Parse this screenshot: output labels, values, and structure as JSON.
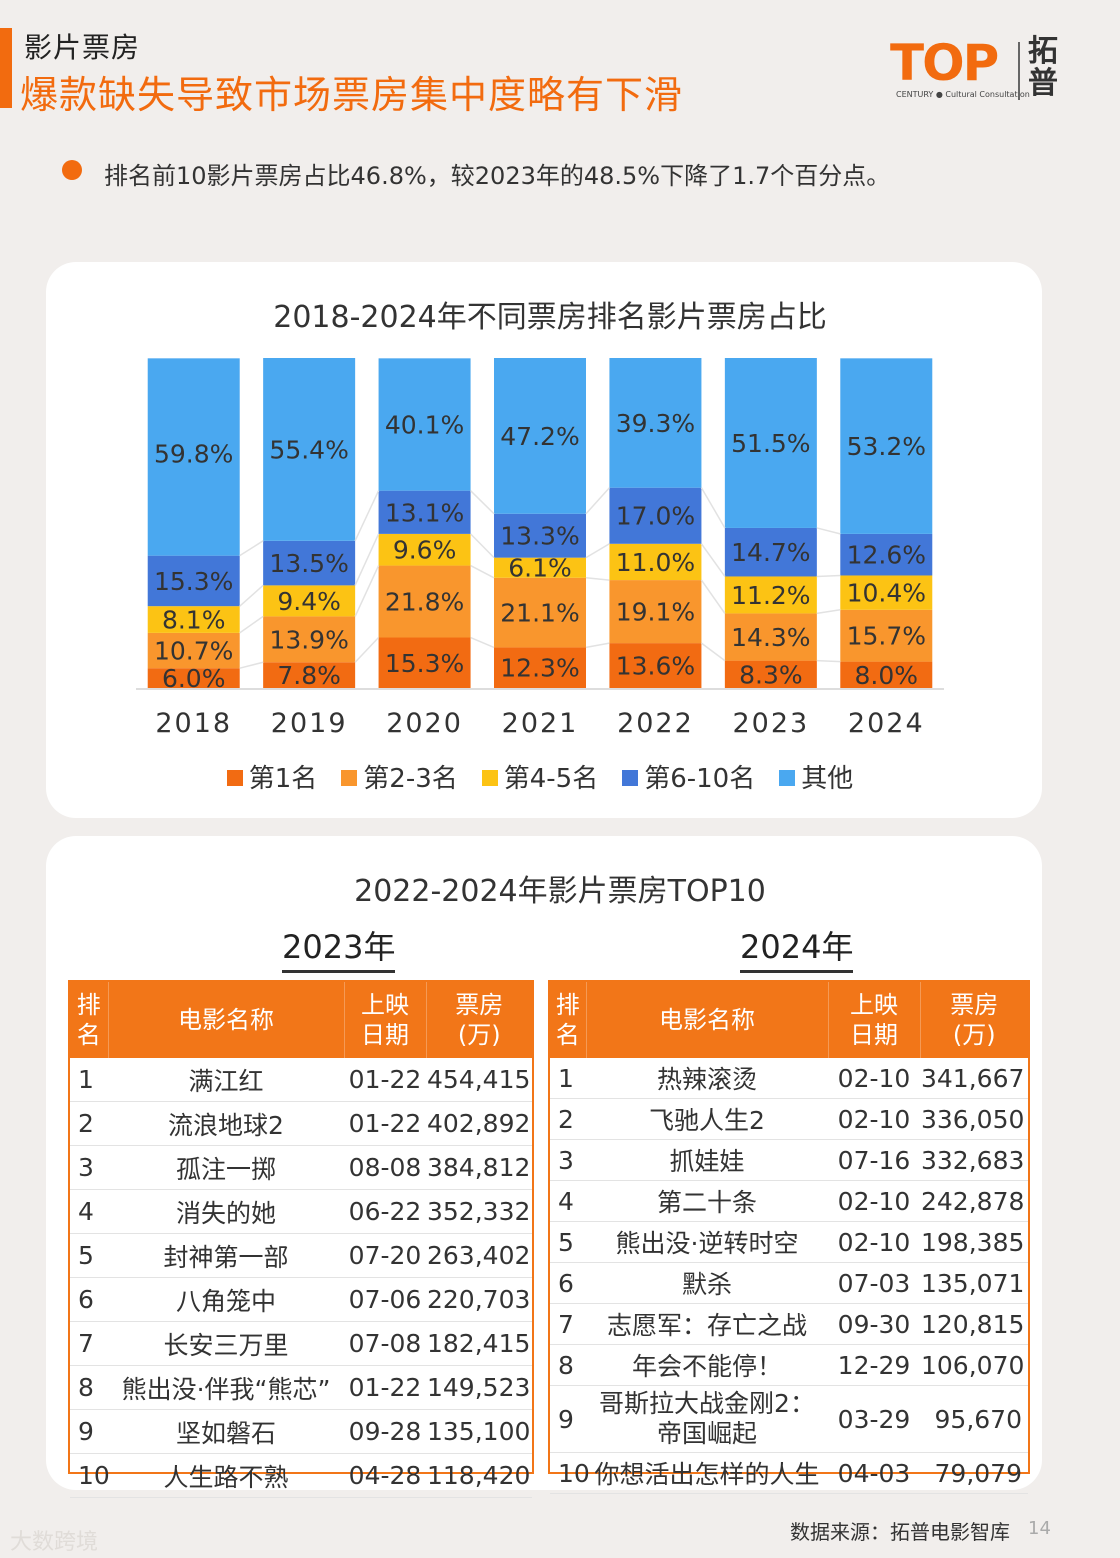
{
  "header": {
    "section_label": "影片票房",
    "headline": "爆款缺失导致市场票房集中度略有下滑",
    "bullet": "排名前10影片票房占比46.8%，较2023年的48.5%下降了1.7个百分点。"
  },
  "logo": {
    "word": "TOP",
    "subtitle": "CENTURY ● Cultural Consultation",
    "cn": "拓普"
  },
  "colors": {
    "accent": "#f26b0f",
    "first": "#f26b12",
    "second_third": "#f9962d",
    "fourth_fifth": "#fcc314",
    "sixth_tenth": "#4277d8",
    "others": "#4aa8f0",
    "table_header": "#f27618"
  },
  "chart_data": {
    "type": "bar",
    "stacked": true,
    "title": "2018-2024年不同票房排名影片票房占比",
    "categories": [
      "2018",
      "2019",
      "2020",
      "2021",
      "2022",
      "2023",
      "2024"
    ],
    "series": [
      {
        "name": "第1名",
        "values": [
          6.0,
          7.8,
          15.3,
          12.3,
          13.6,
          8.3,
          8.0
        ],
        "labels": [
          "6.0%",
          "7.8%",
          "15.3%",
          "12.3%",
          "13.6%",
          "8.3%",
          "8.0%"
        ]
      },
      {
        "name": "第2-3名",
        "values": [
          10.7,
          13.9,
          21.8,
          21.1,
          19.1,
          14.3,
          15.7
        ],
        "labels": [
          "10.7%",
          "13.9%",
          "21.8%",
          "21.1%",
          "19.1%",
          "14.3%",
          "15.7%"
        ]
      },
      {
        "name": "第4-5名",
        "values": [
          8.1,
          9.4,
          9.6,
          6.1,
          11.0,
          11.2,
          10.4
        ],
        "labels": [
          "8.1%",
          "9.4%",
          "9.6%",
          "6.1%",
          "11.0%",
          "11.2%",
          "10.4%"
        ]
      },
      {
        "name": "第6-10名",
        "values": [
          15.3,
          13.5,
          13.1,
          13.3,
          17.0,
          14.7,
          12.6
        ],
        "labels": [
          "15.3%",
          "13.5%",
          "13.1%",
          "13.3%",
          "17.0%",
          "14.7%",
          "12.6%"
        ]
      },
      {
        "name": "其他",
        "values": [
          59.8,
          55.4,
          40.1,
          47.2,
          39.3,
          51.5,
          53.2
        ],
        "labels": [
          "59.8%",
          "55.4%",
          "40.1%",
          "47.2%",
          "39.3%",
          "51.5%",
          "53.2%"
        ]
      }
    ],
    "ylim": [
      0,
      100
    ],
    "legend": "bottom",
    "grid": false
  },
  "tables": {
    "title": "2022-2024年影片票房TOP10",
    "headers": {
      "rank": "排名",
      "name": "电影名称",
      "date": "上映日期",
      "box": "票房(万)"
    },
    "y2023": {
      "year": "2023年",
      "rows": [
        {
          "rank": "1",
          "name": "满江红",
          "date": "01-22",
          "box": "454,415"
        },
        {
          "rank": "2",
          "name": "流浪地球2",
          "date": "01-22",
          "box": "402,892"
        },
        {
          "rank": "3",
          "name": "孤注一掷",
          "date": "08-08",
          "box": "384,812"
        },
        {
          "rank": "4",
          "name": "消失的她",
          "date": "06-22",
          "box": "352,332"
        },
        {
          "rank": "5",
          "name": "封神第一部",
          "date": "07-20",
          "box": "263,402"
        },
        {
          "rank": "6",
          "name": "八角笼中",
          "date": "07-06",
          "box": "220,703"
        },
        {
          "rank": "7",
          "name": "长安三万里",
          "date": "07-08",
          "box": "182,415"
        },
        {
          "rank": "8",
          "name": "熊出没·伴我“熊芯”",
          "date": "01-22",
          "box": "149,523"
        },
        {
          "rank": "9",
          "name": "坚如磐石",
          "date": "09-28",
          "box": "135,100"
        },
        {
          "rank": "10",
          "name": "人生路不熟",
          "date": "04-28",
          "box": "118,420"
        }
      ]
    },
    "y2024": {
      "year": "2024年",
      "rows": [
        {
          "rank": "1",
          "name": "热辣滚烫",
          "date": "02-10",
          "box": "341,667"
        },
        {
          "rank": "2",
          "name": "飞驰人生2",
          "date": "02-10",
          "box": "336,050"
        },
        {
          "rank": "3",
          "name": "抓娃娃",
          "date": "07-16",
          "box": "332,683"
        },
        {
          "rank": "4",
          "name": "第二十条",
          "date": "02-10",
          "box": "242,878"
        },
        {
          "rank": "5",
          "name": "熊出没·逆转时空",
          "date": "02-10",
          "box": "198,385"
        },
        {
          "rank": "6",
          "name": "默杀",
          "date": "07-03",
          "box": "135,071"
        },
        {
          "rank": "7",
          "name": "志愿军：存亡之战",
          "date": "09-30",
          "box": "120,815"
        },
        {
          "rank": "8",
          "name": "年会不能停！",
          "date": "12-29",
          "box": "106,070"
        },
        {
          "rank": "9",
          "name": "哥斯拉大战金刚2：帝国崛起",
          "date": "03-29",
          "box": "95,670"
        },
        {
          "rank": "10",
          "name": "你想活出怎样的人生",
          "date": "04-03",
          "box": "79,079"
        }
      ]
    }
  },
  "footer": {
    "source": "数据来源：拓普电影智库",
    "page": "14",
    "watermark": "大数跨境"
  }
}
